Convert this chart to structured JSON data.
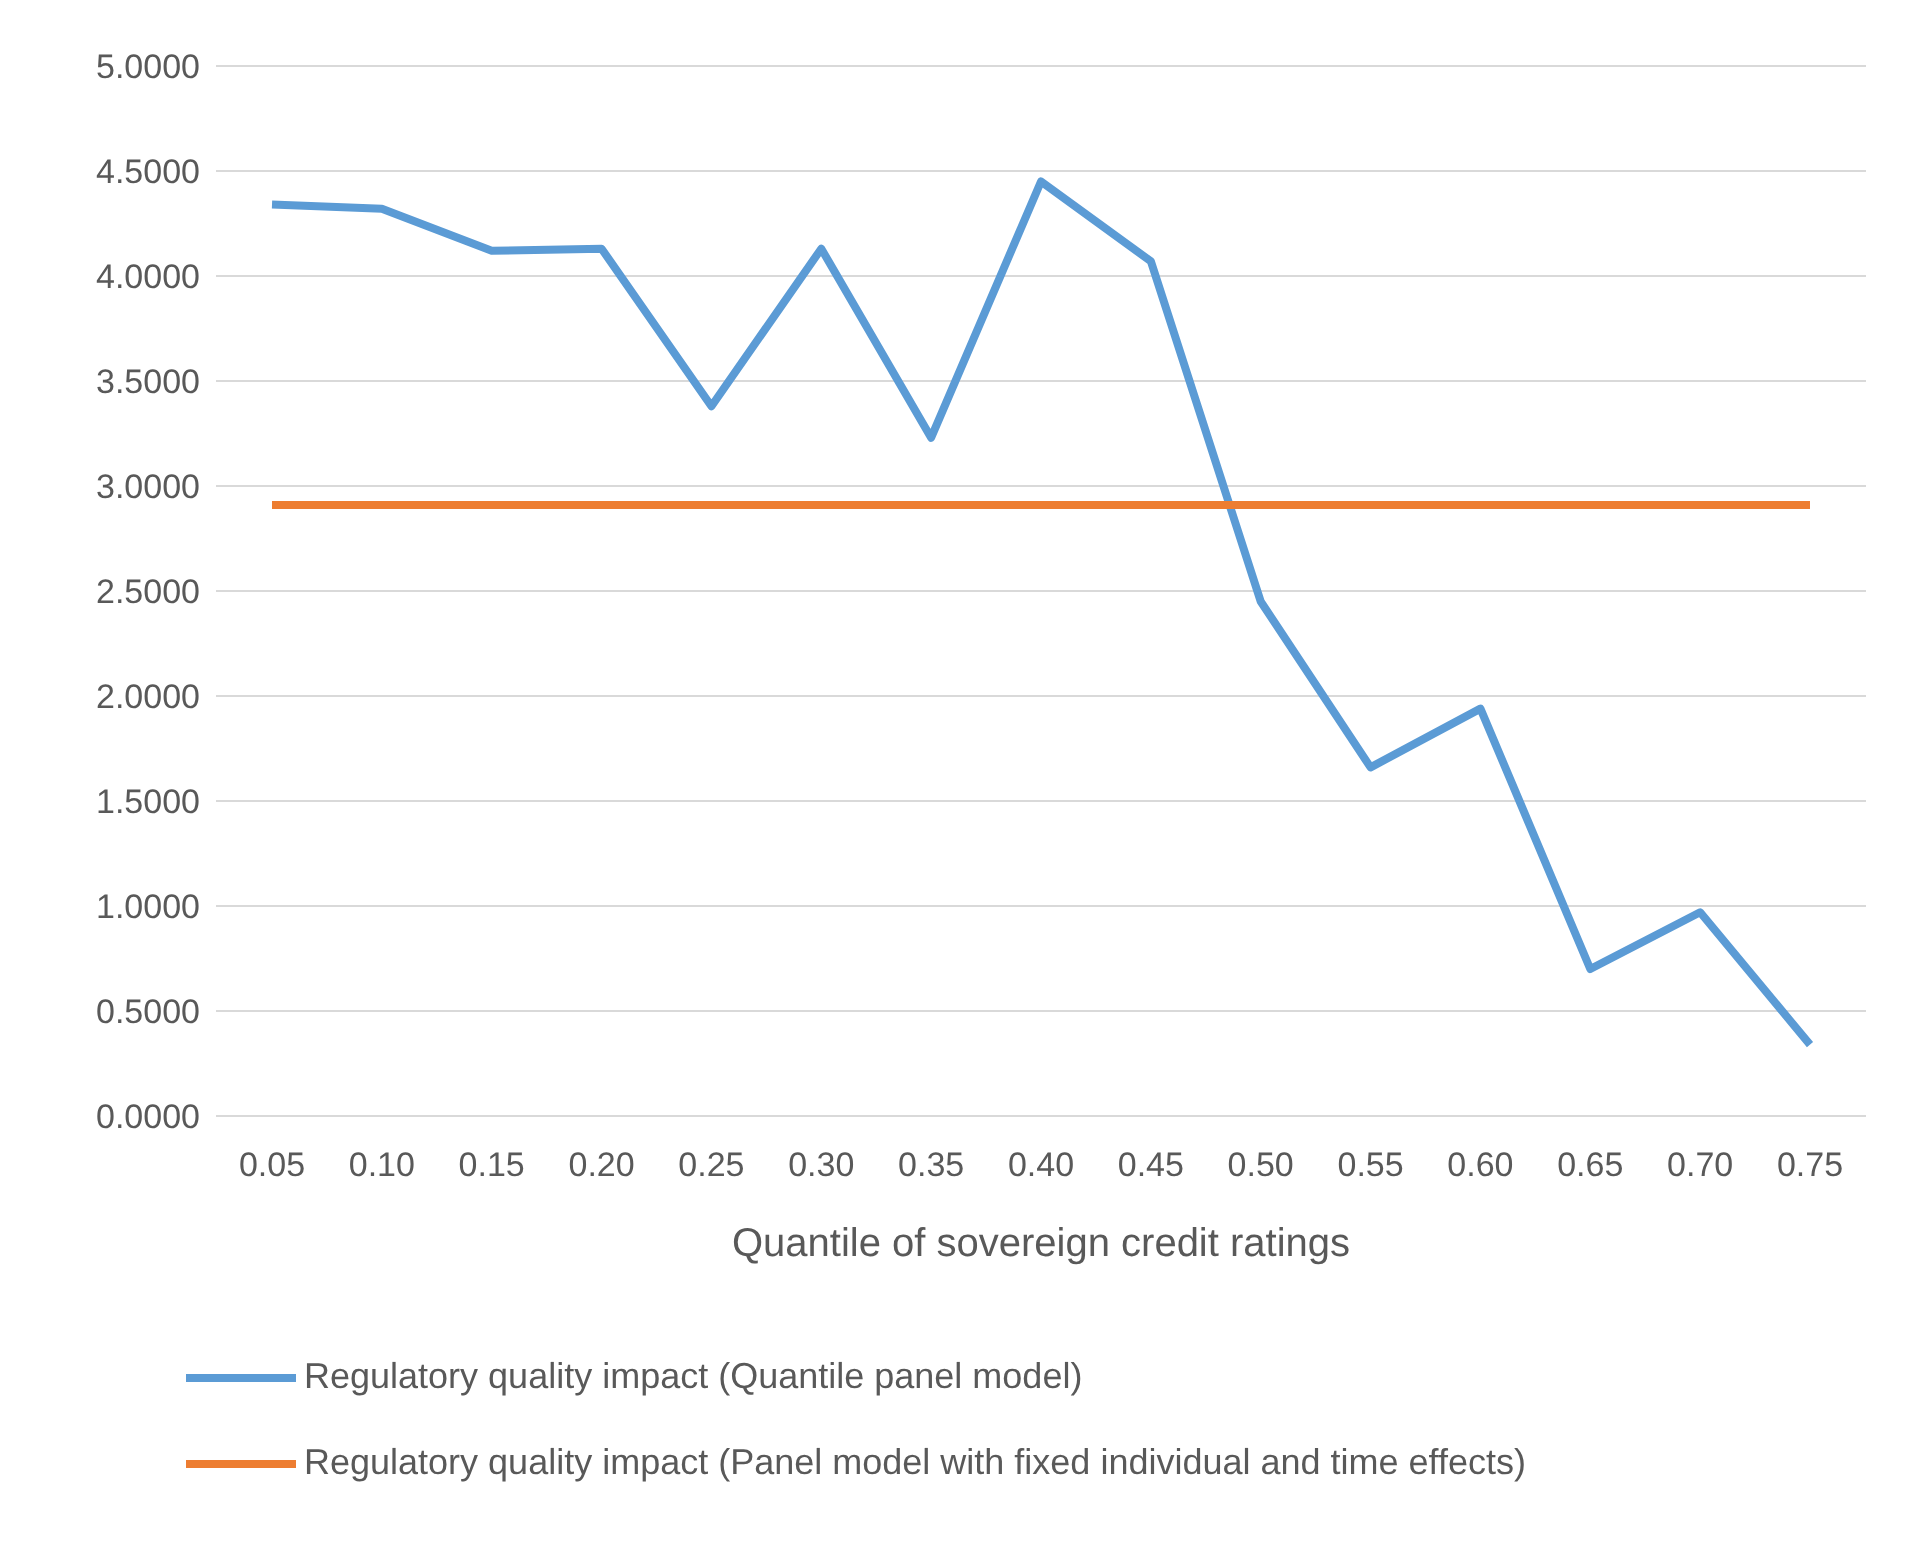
{
  "chart_data": {
    "type": "line",
    "xlabel": "Quantile of sovereign credit ratings",
    "categories": [
      "0.05",
      "0.10",
      "0.15",
      "0.20",
      "0.25",
      "0.30",
      "0.35",
      "0.40",
      "0.45",
      "0.50",
      "0.55",
      "0.60",
      "0.65",
      "0.70",
      "0.75"
    ],
    "series": [
      {
        "name": "Regulatory quality impact (Quantile panel model)",
        "color": "#5b9bd5",
        "values": [
          4.34,
          4.32,
          4.12,
          4.13,
          3.38,
          4.13,
          3.23,
          4.45,
          4.07,
          2.45,
          1.66,
          1.94,
          0.7,
          0.97,
          0.34
        ]
      },
      {
        "name": "Regulatory quality impact (Panel model with fixed individual and time effects)",
        "color": "#ed7d31",
        "values": [
          2.91,
          2.91,
          2.91,
          2.91,
          2.91,
          2.91,
          2.91,
          2.91,
          2.91,
          2.91,
          2.91,
          2.91,
          2.91,
          2.91,
          2.91
        ]
      }
    ],
    "ylim": [
      0,
      5
    ],
    "yticks": [
      {
        "value": 0,
        "label": "0.0000"
      },
      {
        "value": 0.5,
        "label": "0.5000"
      },
      {
        "value": 1,
        "label": "1.0000"
      },
      {
        "value": 1.5,
        "label": "1.5000"
      },
      {
        "value": 2,
        "label": "2.0000"
      },
      {
        "value": 2.5,
        "label": "2.5000"
      },
      {
        "value": 3,
        "label": "3.0000"
      },
      {
        "value": 3.5,
        "label": "3.5000"
      },
      {
        "value": 4,
        "label": "4.0000"
      },
      {
        "value": 4.5,
        "label": "4.5000"
      },
      {
        "value": 5,
        "label": "5.0000"
      }
    ],
    "grid": "y",
    "legend": "bottom",
    "marker": "none",
    "line_style": "solid"
  }
}
